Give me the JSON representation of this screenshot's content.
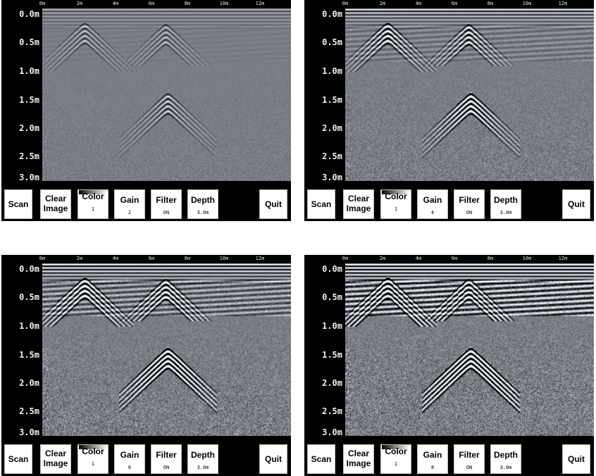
{
  "x_ticks": [
    "0m",
    "2m",
    "4m",
    "6m",
    "8m",
    "10m",
    "12m"
  ],
  "y_ticks": [
    "0.0m",
    "0.5m",
    "1.0m",
    "1.5m",
    "2.0m",
    "2.5m",
    "3.0m"
  ],
  "panels": [
    {
      "id": "top-left",
      "toolbar": {
        "scan": "Scan",
        "clear_line1": "Clear",
        "clear_line2": "Image",
        "color_label": "Color",
        "color_value": "1",
        "gain_label": "Gain",
        "gain_value": "2",
        "filter_label": "Filter",
        "filter_value": "ON",
        "depth_label": "Depth",
        "depth_value": "3.0m",
        "quit": "Quit"
      }
    },
    {
      "id": "top-right",
      "toolbar": {
        "scan": "Scan",
        "clear_line1": "Clear",
        "clear_line2": "Image",
        "color_label": "Color",
        "color_value": "1",
        "gain_label": "Gain",
        "gain_value": "4",
        "filter_label": "Filter",
        "filter_value": "ON",
        "depth_label": "Depth",
        "depth_value": "3.0m",
        "quit": "Quit"
      }
    },
    {
      "id": "bottom-left",
      "toolbar": {
        "scan": "Scan",
        "clear_line1": "Clear",
        "clear_line2": "Image",
        "color_label": "Color",
        "color_value": "1",
        "gain_label": "Gain",
        "gain_value": "6",
        "filter_label": "Filter",
        "filter_value": "ON",
        "depth_label": "Depth",
        "depth_value": "3.0m",
        "quit": "Quit"
      }
    },
    {
      "id": "bottom-right",
      "toolbar": {
        "scan": "Scan",
        "clear_line1": "Clear",
        "clear_line2": "Image",
        "color_label": "Color",
        "color_value": "1",
        "gain_label": "Gain",
        "gain_value": "8",
        "filter_label": "Filter",
        "filter_value": "ON",
        "depth_label": "Depth",
        "depth_value": "3.0m",
        "quit": "Quit"
      }
    }
  ],
  "colors": {
    "background": "#ffffff",
    "panel": "#000000",
    "radargram_base": "#7c8590",
    "button": "#ffffff"
  }
}
